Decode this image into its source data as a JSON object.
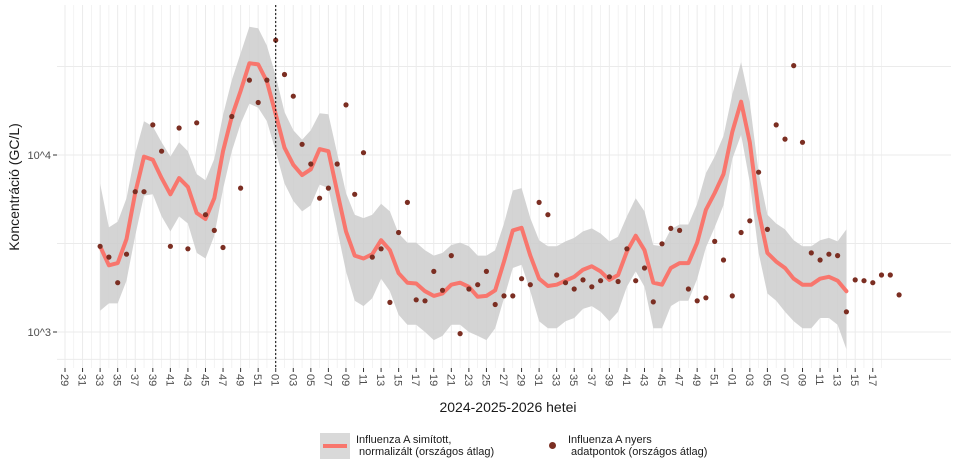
{
  "chart_data": {
    "type": "line",
    "xlabel": "2024-2025-2026 hetei",
    "ylabel": "Koncentráció (GC/L)",
    "y_scale": "log10",
    "ylim": [
      700,
      60000
    ],
    "y_ticks": [
      {
        "value": 1000,
        "label": "10^3"
      },
      {
        "value": 10000,
        "label": "10^4"
      }
    ],
    "x_tick_labels": [
      "29",
      "31",
      "33",
      "35",
      "37",
      "39",
      "41",
      "43",
      "45",
      "47",
      "49",
      "51",
      "01",
      "03",
      "05",
      "07",
      "09",
      "11",
      "13",
      "15",
      "17",
      "19",
      "21",
      "23",
      "25",
      "27",
      "29",
      "31",
      "33",
      "35",
      "37",
      "39",
      "41",
      "43",
      "45",
      "47",
      "49",
      "51",
      "01",
      "03",
      "05",
      "07",
      "09",
      "11",
      "13",
      "15",
      "17"
    ],
    "vertical_marker_label": "01",
    "grid": true,
    "legend_position": "bottom",
    "series": [
      {
        "name": "Influenza A simított,\n normalizált (országos átlag)",
        "kind": "smoothed_line_with_ribbon",
        "color": "#f8766d",
        "ribbon_color": "#cccccc",
        "start_week_label": "33",
        "values": [
          3050,
          2380,
          2450,
          3350,
          6100,
          9800,
          9400,
          7400,
          6000,
          7400,
          6600,
          4700,
          4350,
          5700,
          10500,
          16500,
          23000,
          33000,
          32500,
          26000,
          17000,
          11000,
          8800,
          7700,
          8300,
          10800,
          10500,
          6200,
          3700,
          2700,
          2600,
          2750,
          3300,
          2900,
          2150,
          1900,
          1880,
          1700,
          1600,
          1650,
          1850,
          1900,
          1800,
          1580,
          1600,
          1720,
          2500,
          3750,
          3880,
          2700,
          2000,
          1820,
          1850,
          1950,
          2050,
          2250,
          2350,
          2200,
          1970,
          2100,
          2850,
          3500,
          2900,
          1900,
          1850,
          2300,
          2450,
          2450,
          3200,
          4900,
          6100,
          7800,
          13500,
          20000,
          11800,
          4800,
          2800,
          2500,
          2300,
          2000,
          1850,
          1850,
          2000,
          2050,
          1950,
          1700
        ],
        "ribbon_lower": [
          1320,
          1450,
          1450,
          1950,
          3500,
          5900,
          6000,
          4500,
          3700,
          4500,
          4100,
          2800,
          2600,
          3500,
          6400,
          10500,
          15000,
          19500,
          18500,
          15500,
          10500,
          6900,
          5500,
          4800,
          5200,
          6800,
          6500,
          3800,
          2200,
          1500,
          1400,
          1550,
          2000,
          1700,
          1250,
          1100,
          1100,
          1000,
          900,
          950,
          1100,
          1100,
          1000,
          950,
          900,
          1050,
          1550,
          2300,
          2400,
          1700,
          1150,
          1050,
          1050,
          1150,
          1200,
          1350,
          1400,
          1300,
          1150,
          1300,
          1800,
          2200,
          1800,
          1050,
          1050,
          1400,
          1500,
          1500,
          2000,
          3000,
          3900,
          5200,
          9500,
          13000,
          7000,
          2800,
          1650,
          1500,
          1300,
          1150,
          1050,
          1050,
          1200,
          1200,
          1100,
          800
        ],
        "ribbon_upper": [
          6900,
          3900,
          4200,
          5700,
          10200,
          15500,
          14500,
          11800,
          9800,
          11800,
          10500,
          7800,
          7200,
          9500,
          16800,
          26500,
          37500,
          53000,
          52000,
          41500,
          28000,
          17500,
          13800,
          12200,
          13800,
          17200,
          17000,
          10200,
          6100,
          4600,
          4400,
          4600,
          5300,
          4800,
          3600,
          3200,
          3200,
          2900,
          2700,
          2800,
          3100,
          3200,
          3050,
          2700,
          2700,
          2900,
          4100,
          6300,
          6500,
          4400,
          3300,
          3050,
          3050,
          3250,
          3400,
          3700,
          3850,
          3600,
          3250,
          3450,
          4500,
          5700,
          4800,
          3100,
          3050,
          3800,
          4050,
          4050,
          5300,
          7900,
          9800,
          12800,
          22000,
          33500,
          19800,
          8000,
          4600,
          4100,
          3800,
          3300,
          3050,
          3050,
          3300,
          3400,
          3250,
          3800
        ]
      },
      {
        "name": "Influenza A nyers\n adatpontok (országos átlag)",
        "kind": "points",
        "color": "#7b2e22",
        "start_week_label": "33",
        "values": [
          3050,
          2650,
          1900,
          2750,
          6200,
          6200,
          14800,
          10500,
          3050,
          14200,
          2950,
          15200,
          4600,
          3750,
          3000,
          16500,
          6500,
          26500,
          19800,
          26500,
          44500,
          28500,
          21500,
          11500,
          8900,
          5700,
          6500,
          8900,
          19200,
          6000,
          10300,
          2650,
          2950,
          1470,
          3650,
          5400,
          1520,
          1500,
          2200,
          1720,
          2700,
          980,
          1750,
          1850,
          2200,
          1430,
          1600,
          1600,
          2000,
          1850,
          5400,
          4600,
          2100,
          1900,
          1750,
          1970,
          1800,
          1950,
          2050,
          1930,
          2950,
          1950,
          2300,
          1480,
          3150,
          3850,
          3750,
          1750,
          1500,
          1560,
          3250,
          2550,
          1600,
          3650,
          4250,
          8000,
          3800,
          14800,
          12300,
          32000,
          11800,
          2800,
          2550,
          2750,
          2700,
          1300,
          1970,
          1950,
          1900,
          2100,
          2100,
          1620
        ]
      }
    ],
    "legend": [
      {
        "label": "Influenza A simított,\n normalizált (országos átlag)",
        "key": "line"
      },
      {
        "label": "Influenza A nyers\n adatpontok (országos átlag)",
        "key": "point"
      }
    ]
  }
}
